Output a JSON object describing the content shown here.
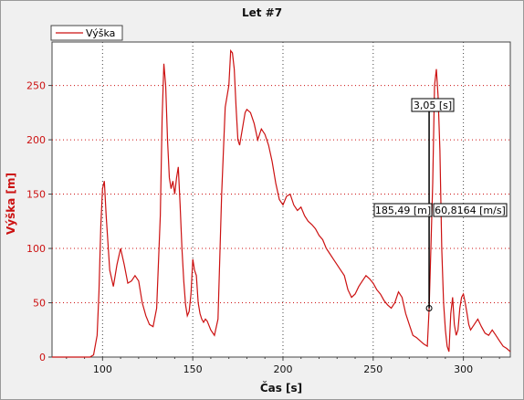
{
  "chart_data": {
    "type": "line",
    "title": "Let #7",
    "xlabel": "Čas [s]",
    "ylabel": "Výška [m]",
    "xlim": [
      72,
      326
    ],
    "ylim": [
      0,
      290
    ],
    "xticks": [
      100,
      150,
      200,
      250,
      300
    ],
    "yticks": [
      0,
      50,
      100,
      150,
      200,
      250
    ],
    "grid": true,
    "legend": "top-left",
    "colors": {
      "line": "#cc1111",
      "axis_text_y": "#cc1111"
    },
    "series": [
      {
        "name": "Výška",
        "x": [
          72,
          93,
          95,
          97,
          98,
          99,
          100,
          101,
          102,
          104,
          106,
          108,
          110,
          112,
          114,
          116,
          118,
          120,
          122,
          124,
          126,
          128,
          130,
          132,
          133,
          134,
          135,
          136,
          137,
          138,
          139,
          140,
          141,
          142,
          143,
          144,
          145,
          146,
          147,
          148,
          149,
          150,
          151,
          152,
          153,
          154,
          155,
          156,
          157,
          158,
          160,
          162,
          164,
          166,
          168,
          170,
          171,
          172,
          173,
          174,
          175,
          176,
          177,
          178,
          179,
          180,
          182,
          184,
          186,
          188,
          190,
          192,
          194,
          196,
          198,
          200,
          202,
          204,
          206,
          208,
          210,
          212,
          214,
          216,
          218,
          220,
          222,
          224,
          226,
          228,
          230,
          232,
          234,
          236,
          238,
          240,
          242,
          244,
          246,
          248,
          250,
          252,
          254,
          256,
          258,
          260,
          262,
          264,
          266,
          268,
          270,
          272,
          274,
          276,
          278,
          280,
          281,
          282,
          283,
          284,
          285,
          286,
          287,
          288,
          289,
          290,
          291,
          292,
          293,
          294,
          295,
          296,
          297,
          298,
          299,
          300,
          301,
          302,
          303,
          304,
          306,
          308,
          310,
          312,
          314,
          316,
          318,
          320,
          322,
          324,
          326
        ],
        "values": [
          0,
          0,
          2,
          20,
          60,
          120,
          155,
          162,
          130,
          80,
          65,
          85,
          100,
          85,
          68,
          70,
          75,
          70,
          50,
          38,
          30,
          28,
          45,
          130,
          220,
          270,
          250,
          200,
          165,
          155,
          162,
          150,
          165,
          175,
          140,
          100,
          70,
          48,
          38,
          42,
          58,
          90,
          80,
          75,
          50,
          40,
          35,
          32,
          35,
          33,
          25,
          20,
          35,
          150,
          230,
          250,
          282,
          280,
          265,
          230,
          200,
          195,
          205,
          215,
          225,
          228,
          225,
          215,
          200,
          210,
          205,
          195,
          180,
          160,
          145,
          140,
          148,
          150,
          140,
          135,
          138,
          130,
          125,
          122,
          118,
          112,
          108,
          100,
          95,
          90,
          85,
          80,
          75,
          62,
          55,
          58,
          65,
          70,
          75,
          72,
          68,
          62,
          58,
          52,
          48,
          45,
          50,
          60,
          55,
          40,
          30,
          20,
          18,
          15,
          12,
          10,
          45,
          100,
          160,
          250,
          265,
          240,
          190,
          100,
          50,
          25,
          10,
          5,
          40,
          55,
          30,
          20,
          25,
          45,
          55,
          58,
          50,
          40,
          30,
          25,
          30,
          35,
          28,
          22,
          20,
          25,
          20,
          15,
          10,
          8,
          5
        ]
      }
    ],
    "annotations": {
      "time_label": "3,05 [s]",
      "readout": "185,49 [m]",
      "speed_label": "60,8164 [m/s]",
      "cursor_x": 281,
      "cursor_x2": 284,
      "cursor_y_low": 45,
      "cursor_y_high": 230
    }
  }
}
